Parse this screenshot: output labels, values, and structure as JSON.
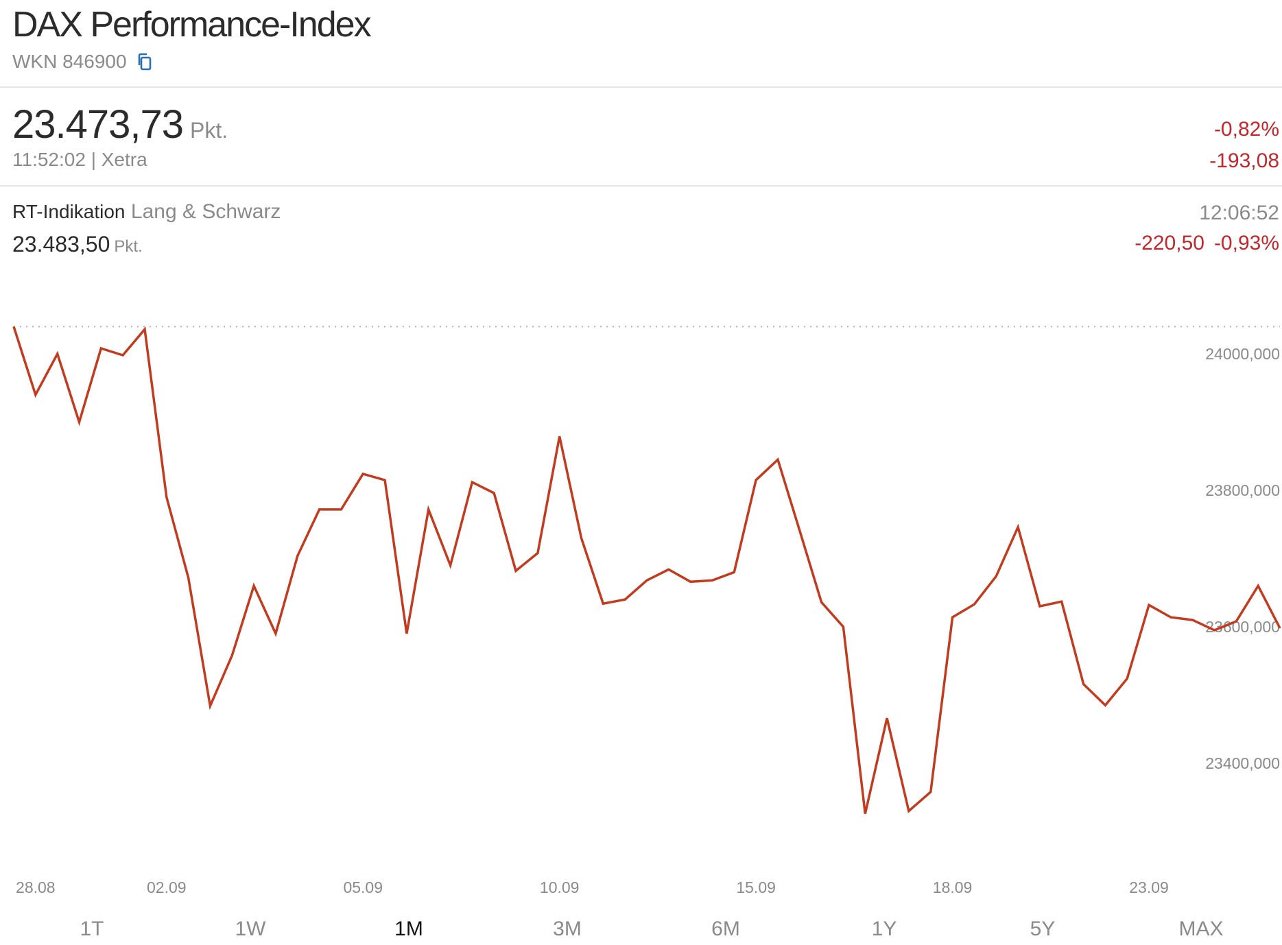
{
  "header": {
    "title": "DAX Performance-Index",
    "wkn_label": "WKN 846900",
    "copy_icon": "copy-icon"
  },
  "quote": {
    "price": "23.473,73",
    "unit": "Pkt.",
    "time_exchange": "11:52:02 | Xetra",
    "change_percent": "-0,82%",
    "change_abs": "-193,08"
  },
  "realtime": {
    "label": "RT-Indikation",
    "provider": "Lang & Schwarz",
    "price": "23.483,50",
    "unit": "Pkt.",
    "time": "12:06:52",
    "change_abs": "-220,50",
    "change_percent": "-0,93%"
  },
  "colors": {
    "line": "#c23b1f",
    "negative": "#c0282d",
    "grid_dotted": "#b0b0b0",
    "axis_text": "#8a8a8a"
  },
  "chart_data": {
    "type": "line",
    "title": "",
    "xlabel": "",
    "ylabel": "",
    "ylim": [
      23280,
      24100
    ],
    "y_ticks": [
      24000,
      23800,
      23600,
      23400
    ],
    "y_tick_labels": [
      "24000,000",
      "23800,000",
      "23600,000",
      "23400,000"
    ],
    "x_tick_labels": [
      "28.08",
      "02.09",
      "05.09",
      "10.09",
      "15.09",
      "18.09",
      "23.09"
    ],
    "x_tick_indices": [
      1,
      7,
      16,
      25,
      34,
      43,
      52
    ],
    "reference_line": 24040,
    "grid": false,
    "series": [
      {
        "values": [
          24040,
          23940,
          24000,
          23900,
          24008,
          23998,
          24036,
          23790,
          23672,
          23484,
          23558,
          23660,
          23590,
          23704,
          23772,
          23772,
          23824,
          23815,
          23590,
          23772,
          23690,
          23812,
          23796,
          23682,
          23708,
          23879,
          23730,
          23634,
          23640,
          23668,
          23684,
          23666,
          23668,
          23680,
          23815,
          23845,
          23741,
          23636,
          23600,
          23326,
          23466,
          23330,
          23358,
          23614,
          23633,
          23674,
          23746,
          23630,
          23637,
          23516,
          23485,
          23524,
          23632,
          23614,
          23610,
          23595,
          23608,
          23660,
          23598
        ]
      }
    ]
  },
  "ranges": {
    "items": [
      "1T",
      "1W",
      "1M",
      "3M",
      "6M",
      "1Y",
      "5Y",
      "MAX"
    ],
    "active": "1M"
  }
}
